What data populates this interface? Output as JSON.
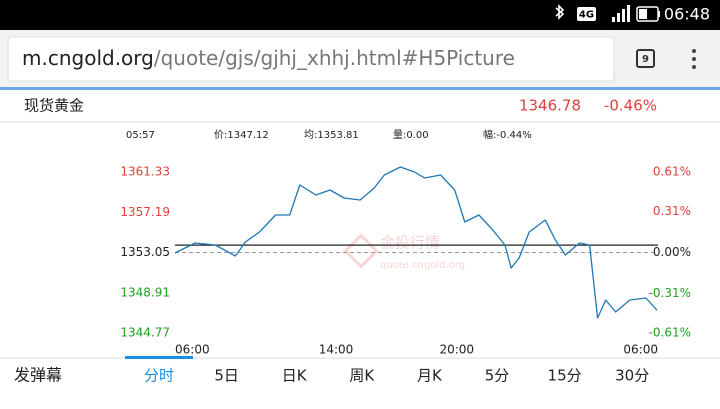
{
  "status_bar": {
    "network": "4G",
    "time": "06:48"
  },
  "address_bar": {
    "host": "m.cngold.org",
    "path": "/quote/gjs/gjhj_xhhj.html#H5Picture",
    "tab_count": 9
  },
  "quote": {
    "name": "现货黄金",
    "price": 1346.78,
    "change": "-0.46%"
  },
  "info": {
    "time": "05:57",
    "price": {
      "label": "价:",
      "value": 1347.12
    },
    "average": {
      "label": "均:",
      "value": 1353.81
    },
    "volume": "量:0.00",
    "amplitude": "幅:-0.44%"
  },
  "chart_data": {
    "type": "line",
    "x": [
      0,
      1.0,
      2.0,
      3.0,
      3.5,
      4.2,
      5.0,
      5.7,
      6.2,
      7.0,
      7.7,
      8.4,
      9.2,
      9.9,
      10.4,
      11.2,
      11.9,
      12.4,
      13.2,
      13.9,
      14.4,
      15.1,
      15.7,
      16.4,
      16.7,
      17.1,
      17.6,
      18.4,
      18.9,
      19.4,
      20.1,
      20.6,
      21.0,
      21.4,
      21.9,
      22.6,
      23.4,
      23.95
    ],
    "values": [
      1353.0,
      1354.03,
      1353.82,
      1352.69,
      1354.13,
      1355.16,
      1356.91,
      1356.91,
      1359.99,
      1358.96,
      1359.48,
      1358.66,
      1358.45,
      1359.68,
      1361.02,
      1361.84,
      1361.33,
      1360.71,
      1361.02,
      1359.48,
      1356.19,
      1356.91,
      1355.57,
      1353.82,
      1351.45,
      1352.48,
      1355.16,
      1356.39,
      1354.33,
      1352.79,
      1354.03,
      1353.82,
      1346.31,
      1348.16,
      1346.93,
      1348.16,
      1348.37,
      1347.12
    ],
    "color": "#1f78b4",
    "average_color": "#222222",
    "xlim": [
      0,
      24
    ],
    "xticks": [
      {
        "value": 0,
        "label": "06:00"
      },
      {
        "value": 8,
        "label": "14:00"
      },
      {
        "value": 14,
        "label": "20:00"
      },
      {
        "value": 24,
        "label": "06:00"
      }
    ],
    "ylim": [
      1344.77,
      1361.33
    ],
    "yticks": [
      1361.33,
      1357.19,
      1353.05,
      1348.91,
      1344.77
    ],
    "y2lim": [
      -0.61,
      0.61
    ],
    "y2ticks": [
      {
        "value": 0.61,
        "label": "0.61%"
      },
      {
        "value": 0.31,
        "label": "0.31%"
      },
      {
        "value": 0,
        "label": "0.00%"
      },
      {
        "value": -0.31,
        "label": "-0.31%"
      },
      {
        "value": -0.61,
        "label": "-0.61%"
      }
    ],
    "up_color": "#e0413a",
    "down_color": "#23a023",
    "watermark": {
      "title": "金投行情",
      "url": "quote.cngold.org"
    }
  },
  "tabs": {
    "danmaku": "发弹幕",
    "items": [
      "分时",
      "5日",
      "日K",
      "周K",
      "月K",
      "5分",
      "15分",
      "30分"
    ],
    "active": 0
  }
}
